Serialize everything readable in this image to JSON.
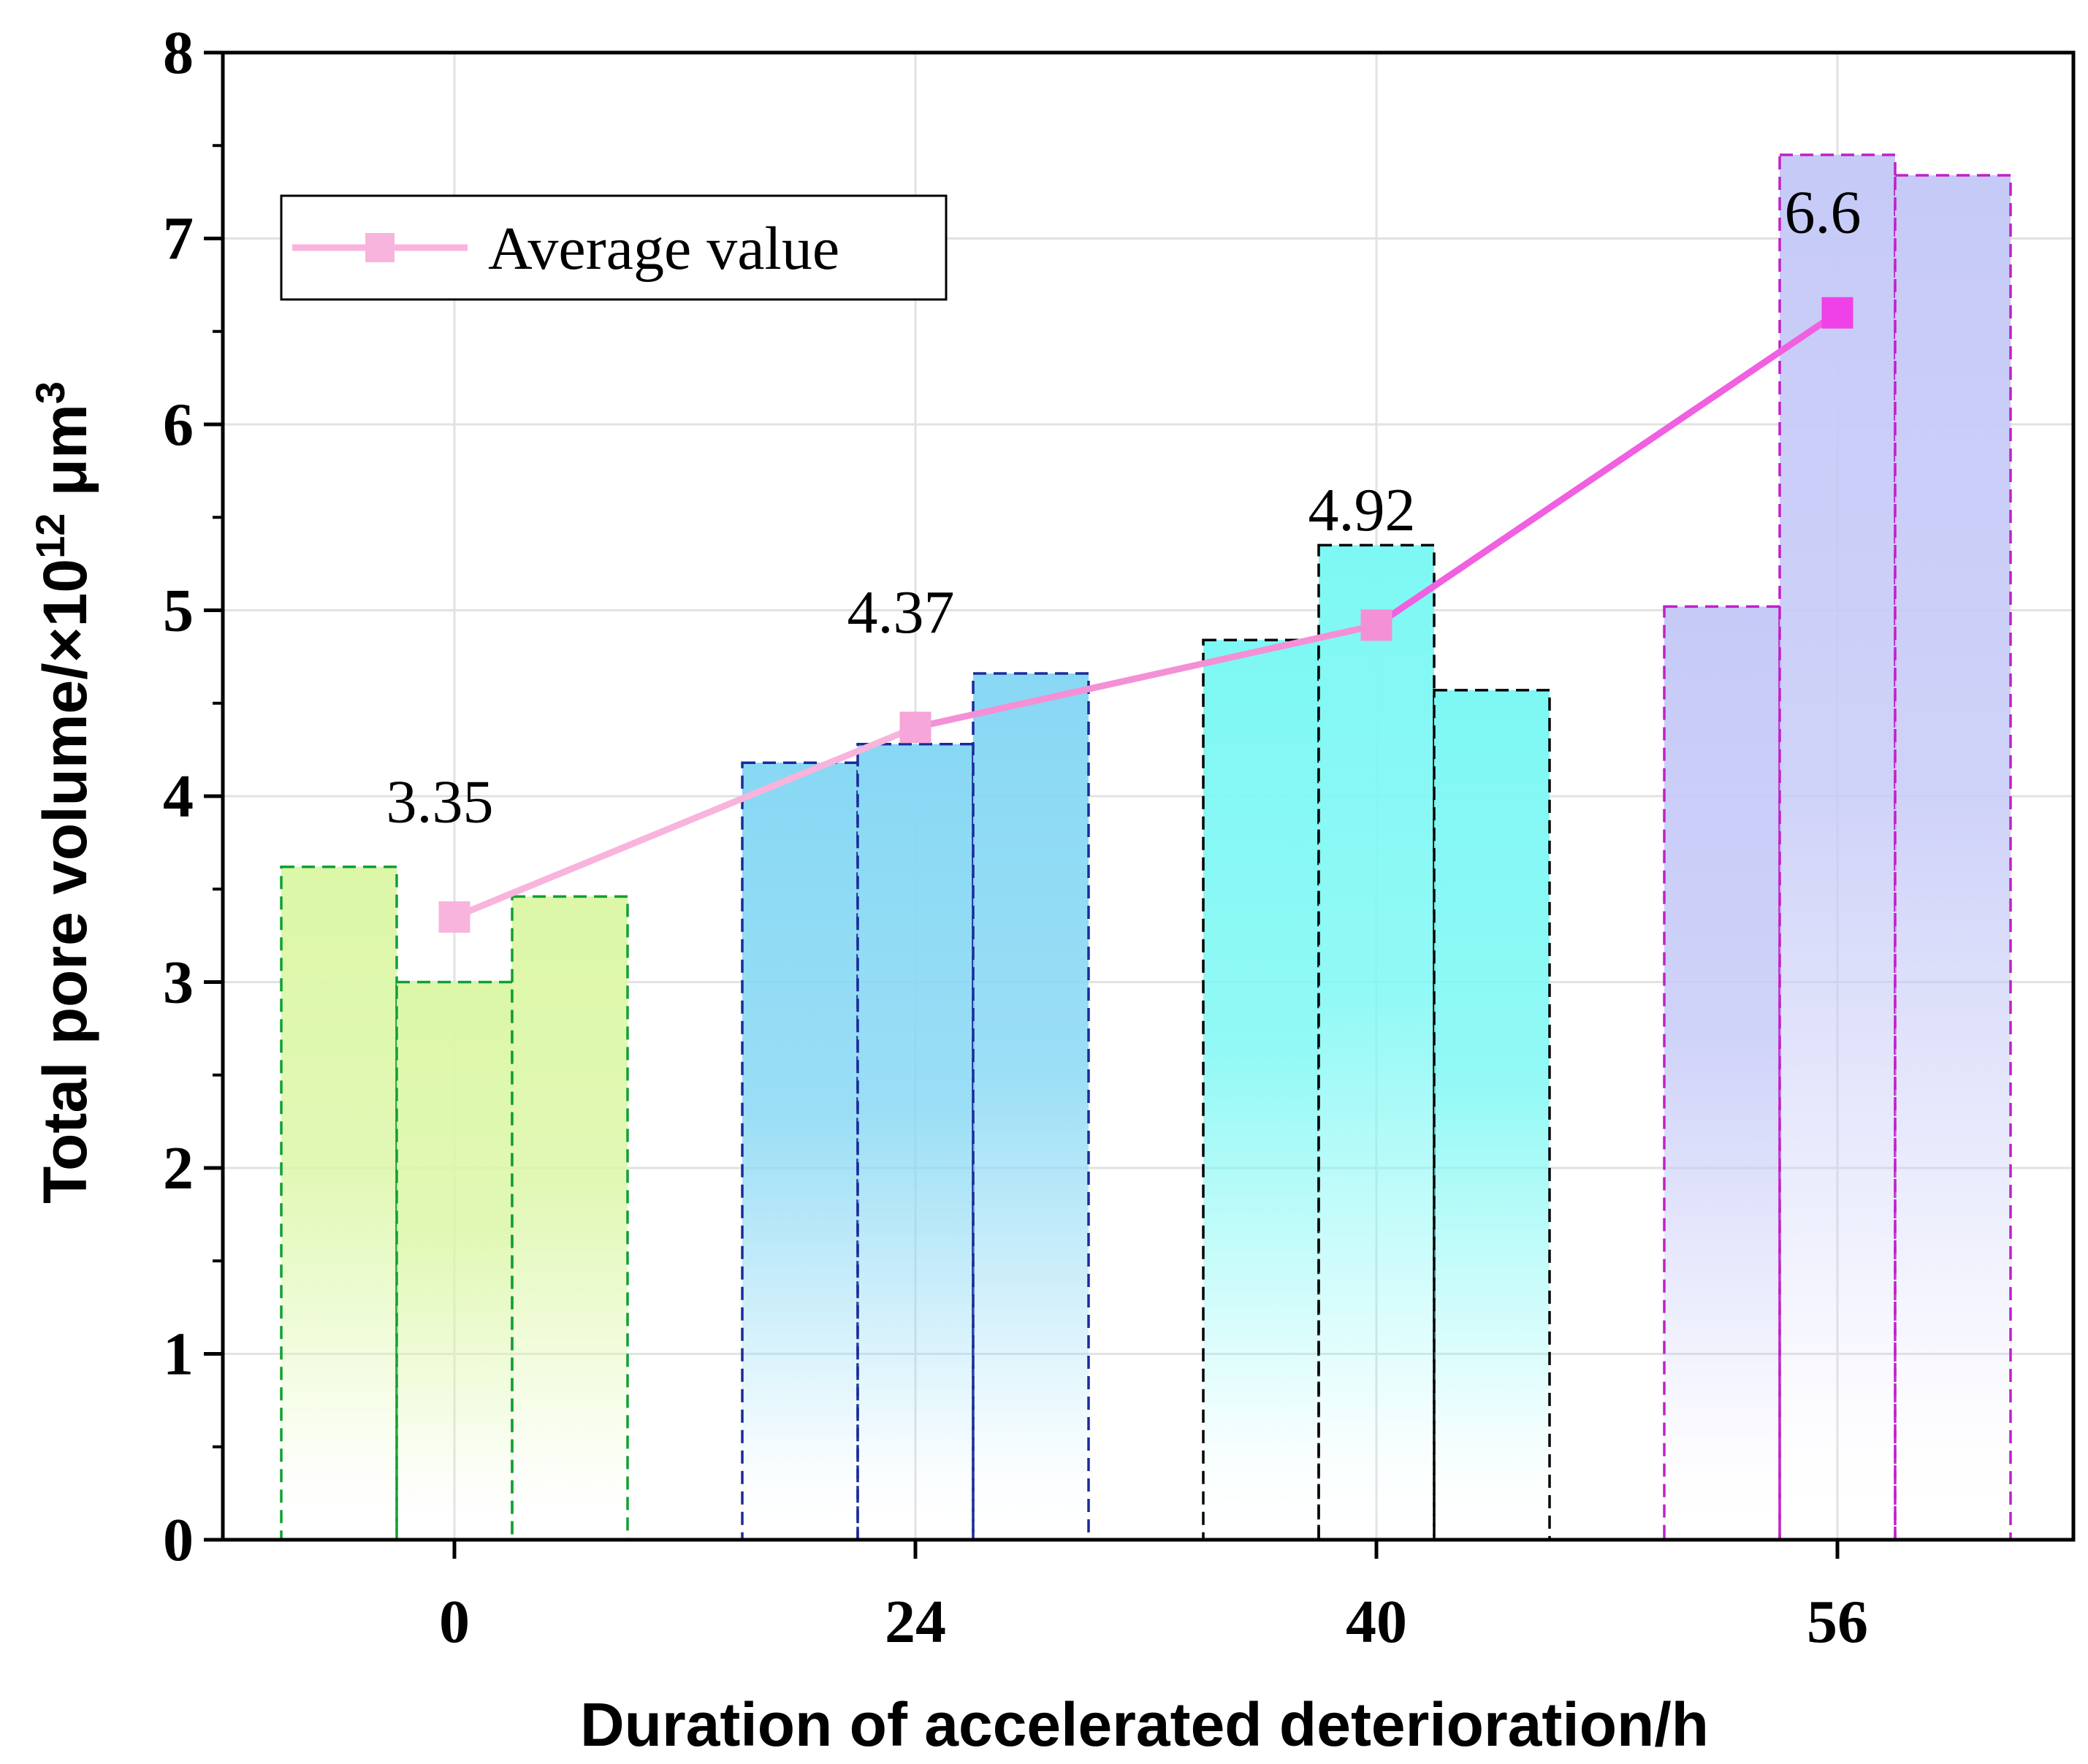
{
  "chart_data": {
    "type": "bar",
    "xlabel": "Duration of accelerated deterioration/h",
    "ylabel": {
      "prefix": "Total pore volume/×10",
      "exp": "12",
      "unit": " μm",
      "unit_exp": "3"
    },
    "ylim": [
      0,
      8
    ],
    "yticks": [
      "0",
      "1",
      "2",
      "3",
      "4",
      "5",
      "6",
      "7",
      "8"
    ],
    "grid": true,
    "groups": [
      {
        "category": "0",
        "values": [
          3.62,
          3.0,
          3.46
        ],
        "color": "#dcf7a8",
        "edge": "#10a030"
      },
      {
        "category": "24",
        "values": [
          4.18,
          4.28,
          4.66
        ],
        "color": "#88d8f4",
        "edge": "#1a2a9a"
      },
      {
        "category": "40",
        "values": [
          4.84,
          5.35,
          4.57
        ],
        "color": "#7ef8f4",
        "edge": "#000000"
      },
      {
        "category": "56",
        "values": [
          5.02,
          7.45,
          7.34
        ],
        "color": "#c6caf7",
        "edge": "#c020c8"
      }
    ],
    "average": {
      "name": "Average value",
      "values": [
        3.35,
        4.37,
        4.92,
        6.6
      ],
      "labels": [
        "3.35",
        "4.37",
        "4.92",
        "6.6"
      ],
      "line_color": "#ff80dc",
      "marker_colors": [
        "#f8b4dc",
        "#f6a6d8",
        "#f490d6",
        "#f040e8"
      ]
    },
    "legend": {
      "label": "Average value",
      "position": "top-left"
    }
  }
}
